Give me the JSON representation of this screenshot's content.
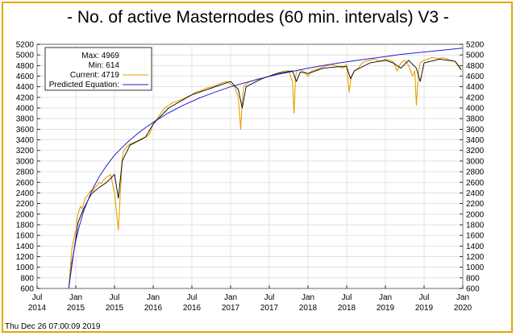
{
  "chart_data": {
    "type": "line",
    "title": "- No. of active Masternodes (60 min. intervals) V3 -",
    "timestamp": "Thu Dec 26 07:00:09 2019",
    "ylim": [
      600,
      5200
    ],
    "yticks": [
      600,
      800,
      1000,
      1200,
      1400,
      1600,
      1800,
      2000,
      2200,
      2400,
      2600,
      2800,
      3000,
      3200,
      3400,
      3600,
      3800,
      4000,
      4200,
      4400,
      4600,
      4800,
      5000,
      5200
    ],
    "xlim": [
      2014.5,
      2020.0
    ],
    "xticks": [
      {
        "value": 2014.5,
        "top": "Jul",
        "bottom": "2014"
      },
      {
        "value": 2015.0,
        "top": "Jan",
        "bottom": "2015"
      },
      {
        "value": 2015.5,
        "top": "Jul",
        "bottom": "2015"
      },
      {
        "value": 2016.0,
        "top": "Jan",
        "bottom": "2016"
      },
      {
        "value": 2016.5,
        "top": "Jul",
        "bottom": "2016"
      },
      {
        "value": 2017.0,
        "top": "Jan",
        "bottom": "2017"
      },
      {
        "value": 2017.5,
        "top": "Jul",
        "bottom": "2017"
      },
      {
        "value": 2018.0,
        "top": "Jan",
        "bottom": "2018"
      },
      {
        "value": 2018.5,
        "top": "Jul",
        "bottom": "2018"
      },
      {
        "value": 2019.0,
        "top": "Jan",
        "bottom": "2019"
      },
      {
        "value": 2019.5,
        "top": "Jul",
        "bottom": "2019"
      },
      {
        "value": 2020.0,
        "top": "Jan",
        "bottom": "2020"
      }
    ],
    "grid": true,
    "legend_position": "top-left",
    "legend": [
      {
        "label": "Max: 4969",
        "swatch": false
      },
      {
        "label": "Min: 614",
        "swatch": false
      },
      {
        "label": "Current: 4719",
        "swatch": true,
        "color": "#e8a000"
      },
      {
        "label": "Predicted Equation:",
        "swatch": true,
        "color": "#2020d0"
      }
    ],
    "series": [
      {
        "color": "#e8a000",
        "x": [
          2014.91,
          2014.93,
          2014.95,
          2014.97,
          2015.0,
          2015.02,
          2015.04,
          2015.06,
          2015.08,
          2015.1,
          2015.12,
          2015.15,
          2015.17,
          2015.2,
          2015.22,
          2015.25,
          2015.28,
          2015.3,
          2015.33,
          2015.36,
          2015.4,
          2015.45,
          2015.5,
          2015.55,
          2015.6,
          2015.62,
          2015.65,
          2015.68,
          2015.7,
          2015.75,
          2015.8,
          2015.85,
          2015.9,
          2015.95,
          2016.0,
          2016.05,
          2016.1,
          2016.15,
          2016.2,
          2016.25,
          2016.3,
          2016.35,
          2016.4,
          2016.45,
          2016.5,
          2016.55,
          2016.6,
          2016.65,
          2016.7,
          2016.75,
          2016.8,
          2016.85,
          2016.9,
          2016.95,
          2017.0,
          2017.05,
          2017.1,
          2017.13,
          2017.15,
          2017.17,
          2017.2,
          2017.25,
          2017.3,
          2017.35,
          2017.4,
          2017.45,
          2017.5,
          2017.55,
          2017.6,
          2017.65,
          2017.7,
          2017.75,
          2017.8,
          2017.82,
          2017.84,
          2017.86,
          2017.9,
          2017.95,
          2018.0,
          2018.05,
          2018.1,
          2018.15,
          2018.2,
          2018.25,
          2018.3,
          2018.35,
          2018.4,
          2018.45,
          2018.5,
          2018.53,
          2018.56,
          2018.6,
          2018.65,
          2018.7,
          2018.75,
          2018.8,
          2018.85,
          2018.9,
          2018.95,
          2019.0,
          2019.05,
          2019.1,
          2019.15,
          2019.2,
          2019.25,
          2019.3,
          2019.35,
          2019.38,
          2019.4,
          2019.43,
          2019.45,
          2019.5,
          2019.55,
          2019.6,
          2019.65,
          2019.7,
          2019.75,
          2019.8,
          2019.85,
          2019.9,
          2019.95,
          2019.98
        ],
        "y": [
          614,
          1000,
          1350,
          1500,
          1700,
          1950,
          2050,
          2150,
          2100,
          2200,
          2300,
          2350,
          2400,
          2450,
          2430,
          2500,
          2550,
          2600,
          2580,
          2650,
          2700,
          2750,
          2400,
          1700,
          3050,
          3200,
          3250,
          3300,
          3320,
          3350,
          3380,
          3420,
          3450,
          3500,
          3700,
          3800,
          3900,
          4000,
          4050,
          4100,
          4120,
          4150,
          4180,
          4220,
          4250,
          4300,
          4320,
          4350,
          4380,
          4400,
          4420,
          4450,
          4480,
          4500,
          4450,
          4400,
          4200,
          3600,
          4100,
          4400,
          4450,
          4500,
          4520,
          4550,
          4550,
          4580,
          4600,
          4620,
          4650,
          4680,
          4700,
          4700,
          4500,
          3900,
          4600,
          4700,
          4720,
          4680,
          4600,
          4700,
          4720,
          4750,
          4780,
          4800,
          4820,
          4800,
          4780,
          4750,
          4820,
          4300,
          4600,
          4700,
          4750,
          4850,
          4880,
          4900,
          4920,
          4900,
          4880,
          4920,
          4900,
          4880,
          4700,
          4850,
          4900,
          4800,
          4600,
          4700,
          4050,
          4700,
          4850,
          4900,
          4920,
          4950,
          4940,
          4930,
          4950,
          4920,
          4900,
          4880,
          4800,
          4719
        ]
      },
      {
        "color": "#2020d0",
        "x": [
          2014.91,
          2014.95,
          2015.0,
          2015.05,
          2015.1,
          2015.2,
          2015.3,
          2015.4,
          2015.5,
          2015.6,
          2015.7,
          2015.8,
          2015.9,
          2016.0,
          2016.2,
          2016.4,
          2016.6,
          2016.8,
          2017.0,
          2017.2,
          2017.4,
          2017.6,
          2017.8,
          2018.0,
          2018.2,
          2018.4,
          2018.6,
          2018.8,
          2019.0,
          2019.2,
          2019.4,
          2019.6,
          2019.8,
          2020.0
        ],
        "y": [
          600,
          1100,
          1500,
          1800,
          2050,
          2420,
          2700,
          2920,
          3110,
          3260,
          3400,
          3520,
          3630,
          3730,
          3910,
          4060,
          4190,
          4300,
          4400,
          4480,
          4560,
          4630,
          4690,
          4750,
          4800,
          4850,
          4890,
          4930,
          4970,
          5010,
          5040,
          5070,
          5100,
          5130
        ]
      },
      {
        "color": "#000000",
        "x": [
          2014.91,
          2014.97,
          2015.03,
          2015.1,
          2015.2,
          2015.3,
          2015.4,
          2015.5,
          2015.55,
          2015.6,
          2015.7,
          2015.9,
          2016.0,
          2016.2,
          2016.5,
          2016.8,
          2017.0,
          2017.1,
          2017.15,
          2017.2,
          2017.4,
          2017.6,
          2017.8,
          2017.85,
          2017.9,
          2018.0,
          2018.2,
          2018.4,
          2018.5,
          2018.55,
          2018.6,
          2018.8,
          2019.0,
          2019.1,
          2019.2,
          2019.3,
          2019.4,
          2019.45,
          2019.5,
          2019.7,
          2019.9,
          2019.98
        ],
        "y": [
          620,
          1250,
          1850,
          2100,
          2380,
          2500,
          2600,
          2750,
          2300,
          3000,
          3300,
          3450,
          3700,
          4000,
          4250,
          4400,
          4500,
          4350,
          4000,
          4400,
          4550,
          4650,
          4700,
          4500,
          4680,
          4650,
          4750,
          4780,
          4780,
          4550,
          4700,
          4850,
          4900,
          4850,
          4750,
          4900,
          4750,
          4500,
          4850,
          4920,
          4880,
          4719
        ]
      }
    ]
  }
}
